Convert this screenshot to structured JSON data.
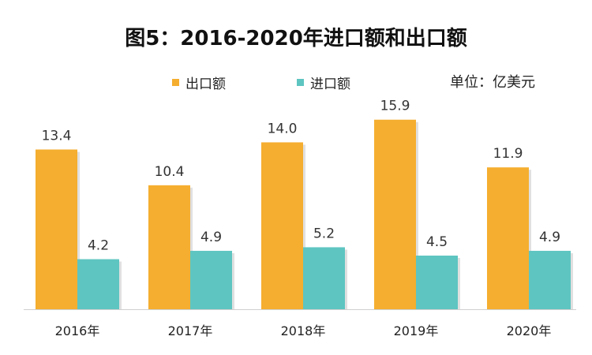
{
  "chart_data": {
    "type": "bar",
    "title": "图5：2016-2020年进口额和出口额",
    "unit_label": "单位：亿美元",
    "categories": [
      "2016年",
      "2017年",
      "2018年",
      "2019年",
      "2020年"
    ],
    "series": [
      {
        "name": "出口额",
        "values": [
          13.4,
          10.4,
          14.0,
          15.9,
          11.9
        ],
        "color": "#F5AE2F"
      },
      {
        "name": "进口额",
        "values": [
          4.2,
          4.9,
          5.2,
          4.5,
          4.9
        ],
        "color": "#5EC5C1"
      }
    ],
    "ylim": [
      0,
      18
    ],
    "grid": false,
    "legend_position": "top"
  }
}
